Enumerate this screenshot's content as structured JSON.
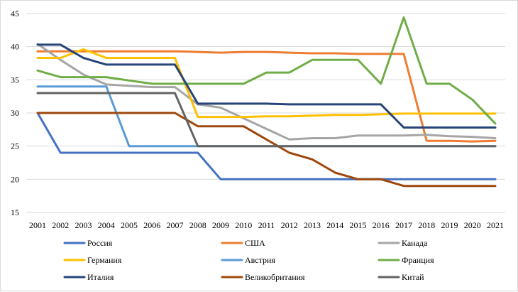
{
  "chart_data": {
    "type": "line",
    "title": "",
    "xlabel": "",
    "ylabel": "",
    "ylim": [
      15,
      45
    ],
    "yticks": [
      15,
      20,
      25,
      30,
      35,
      40,
      45
    ],
    "grid": "horizontal",
    "legend_position": "bottom",
    "categories": [
      "2001",
      "2002",
      "2003",
      "2004",
      "2005",
      "2006",
      "2007",
      "2008",
      "2009",
      "2010",
      "2011",
      "2012",
      "2013",
      "2014",
      "2015",
      "2016",
      "2017",
      "2018",
      "2019",
      "2020",
      "2021"
    ],
    "series": [
      {
        "name": "Россия",
        "color": "#4472c4",
        "values": [
          30,
          24,
          24,
          24,
          24,
          24,
          24,
          24,
          20,
          20,
          20,
          20,
          20,
          20,
          20,
          20,
          20,
          20,
          20,
          20,
          20
        ]
      },
      {
        "name": "США",
        "color": "#ed7d31",
        "values": [
          39.3,
          39.3,
          39.3,
          39.3,
          39.3,
          39.3,
          39.3,
          39.2,
          39.1,
          39.2,
          39.2,
          39.1,
          39,
          39,
          38.9,
          38.9,
          38.9,
          25.8,
          25.8,
          25.7,
          25.8
        ]
      },
      {
        "name": "Канада",
        "color": "#a5a5a5",
        "values": [
          40.4,
          38,
          35.8,
          34.3,
          34.1,
          33.9,
          33.9,
          31.3,
          30.8,
          29.2,
          27.6,
          26,
          26.2,
          26.2,
          26.6,
          26.6,
          26.6,
          26.7,
          26.5,
          26.4,
          26.2
        ]
      },
      {
        "name": "Германия",
        "color": "#ffc000",
        "values": [
          38.3,
          38.3,
          39.6,
          38.3,
          38.3,
          38.3,
          38.3,
          29.4,
          29.4,
          29.4,
          29.5,
          29.5,
          29.6,
          29.7,
          29.7,
          29.8,
          29.9,
          29.9,
          29.9,
          29.9,
          29.9
        ]
      },
      {
        "name": "Австрия",
        "color": "#5b9bd5",
        "values": [
          34,
          34,
          34,
          34,
          25,
          25,
          25,
          25,
          25,
          25,
          25,
          25,
          25,
          25,
          25,
          25,
          25,
          25,
          25,
          25,
          25
        ]
      },
      {
        "name": "Франция",
        "color": "#70ad47",
        "values": [
          36.4,
          35.4,
          35.4,
          35.4,
          34.9,
          34.4,
          34.4,
          34.4,
          34.4,
          34.4,
          36.1,
          36.1,
          38,
          38,
          38,
          34.4,
          44.4,
          34.4,
          34.4,
          32,
          28.4
        ]
      },
      {
        "name": "Италия",
        "color": "#264478",
        "values": [
          40.3,
          40.3,
          38.3,
          37.3,
          37.3,
          37.3,
          37.3,
          31.4,
          31.4,
          31.4,
          31.4,
          31.3,
          31.3,
          31.3,
          31.3,
          31.3,
          27.8,
          27.8,
          27.8,
          27.8,
          27.8
        ]
      },
      {
        "name": "Великобритания",
        "color": "#9e480e",
        "values": [
          30,
          30,
          30,
          30,
          30,
          30,
          30,
          28,
          28,
          28,
          26,
          24,
          23,
          21,
          20,
          20,
          19,
          19,
          19,
          19,
          19
        ]
      },
      {
        "name": "Китай",
        "color": "#636363",
        "values": [
          33,
          33,
          33,
          33,
          33,
          33,
          33,
          25,
          25,
          25,
          25,
          25,
          25,
          25,
          25,
          25,
          25,
          25,
          25,
          25,
          25
        ]
      }
    ]
  }
}
